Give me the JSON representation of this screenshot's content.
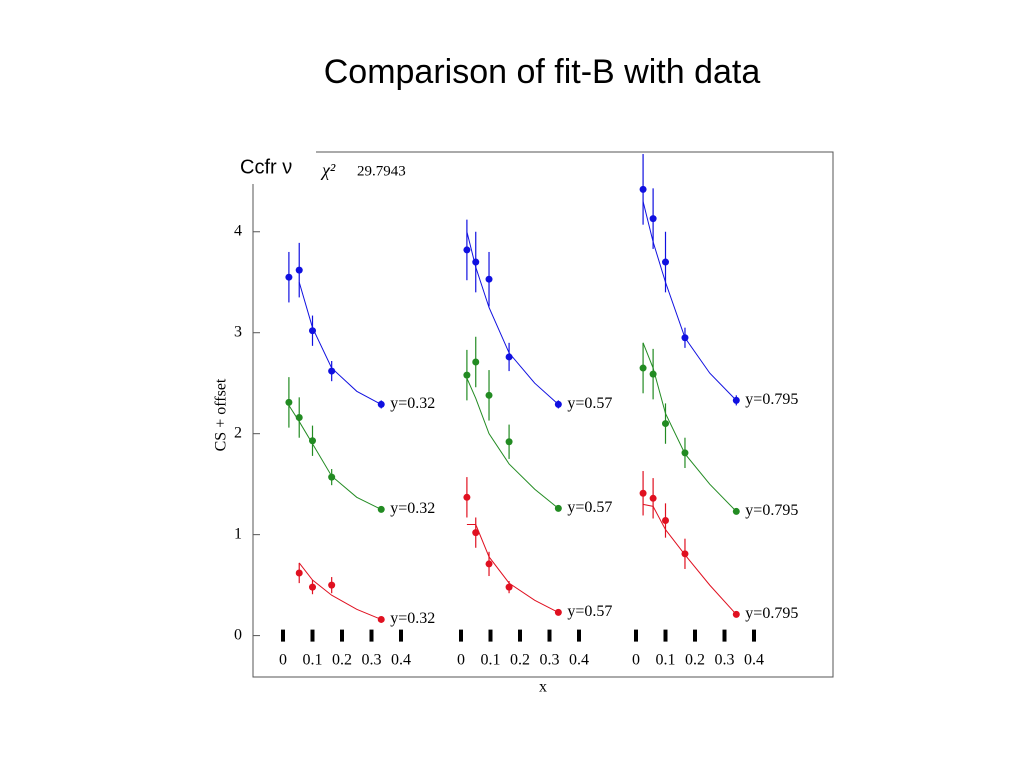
{
  "chart_data": {
    "type": "scatter",
    "title": "Comparison of fit-B with data",
    "label": "Ccfr ν",
    "chi2_label": "χ²",
    "chi2_value": 29.7943,
    "ylabel": "CS + offset",
    "xlabel": "x",
    "ylim": [
      -0.41,
      4.79
    ],
    "yticks": [
      0,
      1,
      2,
      3,
      4
    ],
    "panels": [
      {
        "xlim": [
          0,
          0.4
        ],
        "xticks": [
          0,
          0.1,
          0.2,
          0.3,
          0.4
        ],
        "series": [
          {
            "name": "y=0.32",
            "color": "#1010e0",
            "x": [
              0.02,
              0.055,
              0.1,
              0.165,
              0.333
            ],
            "values": [
              3.55,
              3.62,
              3.02,
              2.62,
              2.29
            ],
            "errors": [
              0.25,
              0.27,
              0.15,
              0.1,
              0.04
            ],
            "fit_x": [
              0.055,
              0.1,
              0.165,
              0.25,
              0.333
            ],
            "fit_values": [
              3.5,
              3.05,
              2.65,
              2.42,
              2.29
            ]
          },
          {
            "name": "y=0.32",
            "color": "#228b22",
            "x": [
              0.02,
              0.055,
              0.1,
              0.165,
              0.333
            ],
            "values": [
              2.31,
              2.16,
              1.93,
              1.57,
              1.25
            ],
            "errors": [
              0.25,
              0.2,
              0.15,
              0.08,
              0.03
            ],
            "fit_x": [
              0.02,
              0.055,
              0.1,
              0.165,
              0.25,
              0.333
            ],
            "fit_values": [
              2.28,
              2.12,
              1.9,
              1.58,
              1.37,
              1.25
            ]
          },
          {
            "name": "y=0.32",
            "color": "#e01020",
            "x": [
              0.055,
              0.1,
              0.165,
              0.333
            ],
            "values": [
              0.62,
              0.48,
              0.5,
              0.16
            ],
            "errors": [
              0.1,
              0.07,
              0.08,
              0.02
            ],
            "fit_x": [
              0.055,
              0.1,
              0.165,
              0.25,
              0.333
            ],
            "fit_values": [
              0.72,
              0.55,
              0.4,
              0.26,
              0.16
            ]
          }
        ]
      },
      {
        "xlim": [
          0,
          0.4
        ],
        "xticks": [
          0,
          0.1,
          0.2,
          0.3,
          0.4
        ],
        "series": [
          {
            "name": "y=0.57",
            "color": "#1010e0",
            "x": [
              0.02,
              0.05,
              0.095,
              0.163,
              0.33
            ],
            "values": [
              3.82,
              3.7,
              3.53,
              2.76,
              2.29
            ],
            "errors": [
              0.3,
              0.3,
              0.27,
              0.14,
              0.04
            ],
            "fit_x": [
              0.02,
              0.05,
              0.095,
              0.163,
              0.25,
              0.33
            ],
            "fit_values": [
              4.0,
              3.65,
              3.25,
              2.8,
              2.5,
              2.29
            ]
          },
          {
            "name": "y=0.57",
            "color": "#228b22",
            "x": [
              0.02,
              0.05,
              0.095,
              0.163,
              0.33
            ],
            "values": [
              2.58,
              2.71,
              2.38,
              1.92,
              1.26
            ],
            "errors": [
              0.25,
              0.25,
              0.25,
              0.17,
              0.03
            ],
            "fit_x": [
              0.02,
              0.05,
              0.095,
              0.163,
              0.25,
              0.33
            ],
            "fit_values": [
              2.55,
              2.35,
              2.0,
              1.7,
              1.45,
              1.26
            ]
          },
          {
            "name": "y=0.57",
            "color": "#e01020",
            "x": [
              0.02,
              0.05,
              0.095,
              0.163,
              0.33
            ],
            "values": [
              1.37,
              1.02,
              0.71,
              0.48,
              0.23
            ],
            "errors": [
              0.2,
              0.15,
              0.12,
              0.06,
              0.03
            ],
            "fit_x": [
              0.02,
              0.05,
              0.095,
              0.163,
              0.25,
              0.33
            ],
            "fit_values": [
              1.1,
              1.1,
              0.78,
              0.52,
              0.35,
              0.23
            ]
          }
        ]
      },
      {
        "xlim": [
          0,
          0.4
        ],
        "xticks": [
          0,
          0.1,
          0.2,
          0.3,
          0.4
        ],
        "series": [
          {
            "name": "y=0.795",
            "color": "#1010e0",
            "x": [
              0.024,
              0.058,
              0.1,
              0.166,
              0.34
            ],
            "values": [
              4.42,
              4.13,
              3.7,
              2.95,
              2.33
            ],
            "errors": [
              0.35,
              0.3,
              0.3,
              0.1,
              0.05
            ],
            "fit_x": [
              0.024,
              0.058,
              0.1,
              0.166,
              0.25,
              0.34
            ],
            "fit_values": [
              4.3,
              3.9,
              3.5,
              2.95,
              2.6,
              2.33
            ]
          },
          {
            "name": "y=0.795",
            "color": "#228b22",
            "x": [
              0.024,
              0.058,
              0.1,
              0.166,
              0.34
            ],
            "values": [
              2.65,
              2.59,
              2.1,
              1.81,
              1.23
            ],
            "errors": [
              0.25,
              0.25,
              0.2,
              0.15,
              0.03
            ],
            "fit_x": [
              0.024,
              0.058,
              0.1,
              0.166,
              0.25,
              0.34
            ],
            "fit_values": [
              2.9,
              2.65,
              2.2,
              1.8,
              1.5,
              1.23
            ]
          },
          {
            "name": "y=0.795",
            "color": "#e01020",
            "x": [
              0.024,
              0.058,
              0.1,
              0.166,
              0.34
            ],
            "values": [
              1.41,
              1.36,
              1.14,
              0.81,
              0.21
            ],
            "errors": [
              0.22,
              0.2,
              0.17,
              0.15,
              0.03
            ],
            "fit_x": [
              0.024,
              0.058,
              0.1,
              0.166,
              0.25,
              0.34
            ],
            "fit_values": [
              1.3,
              1.28,
              1.05,
              0.8,
              0.5,
              0.21
            ]
          }
        ]
      }
    ]
  }
}
